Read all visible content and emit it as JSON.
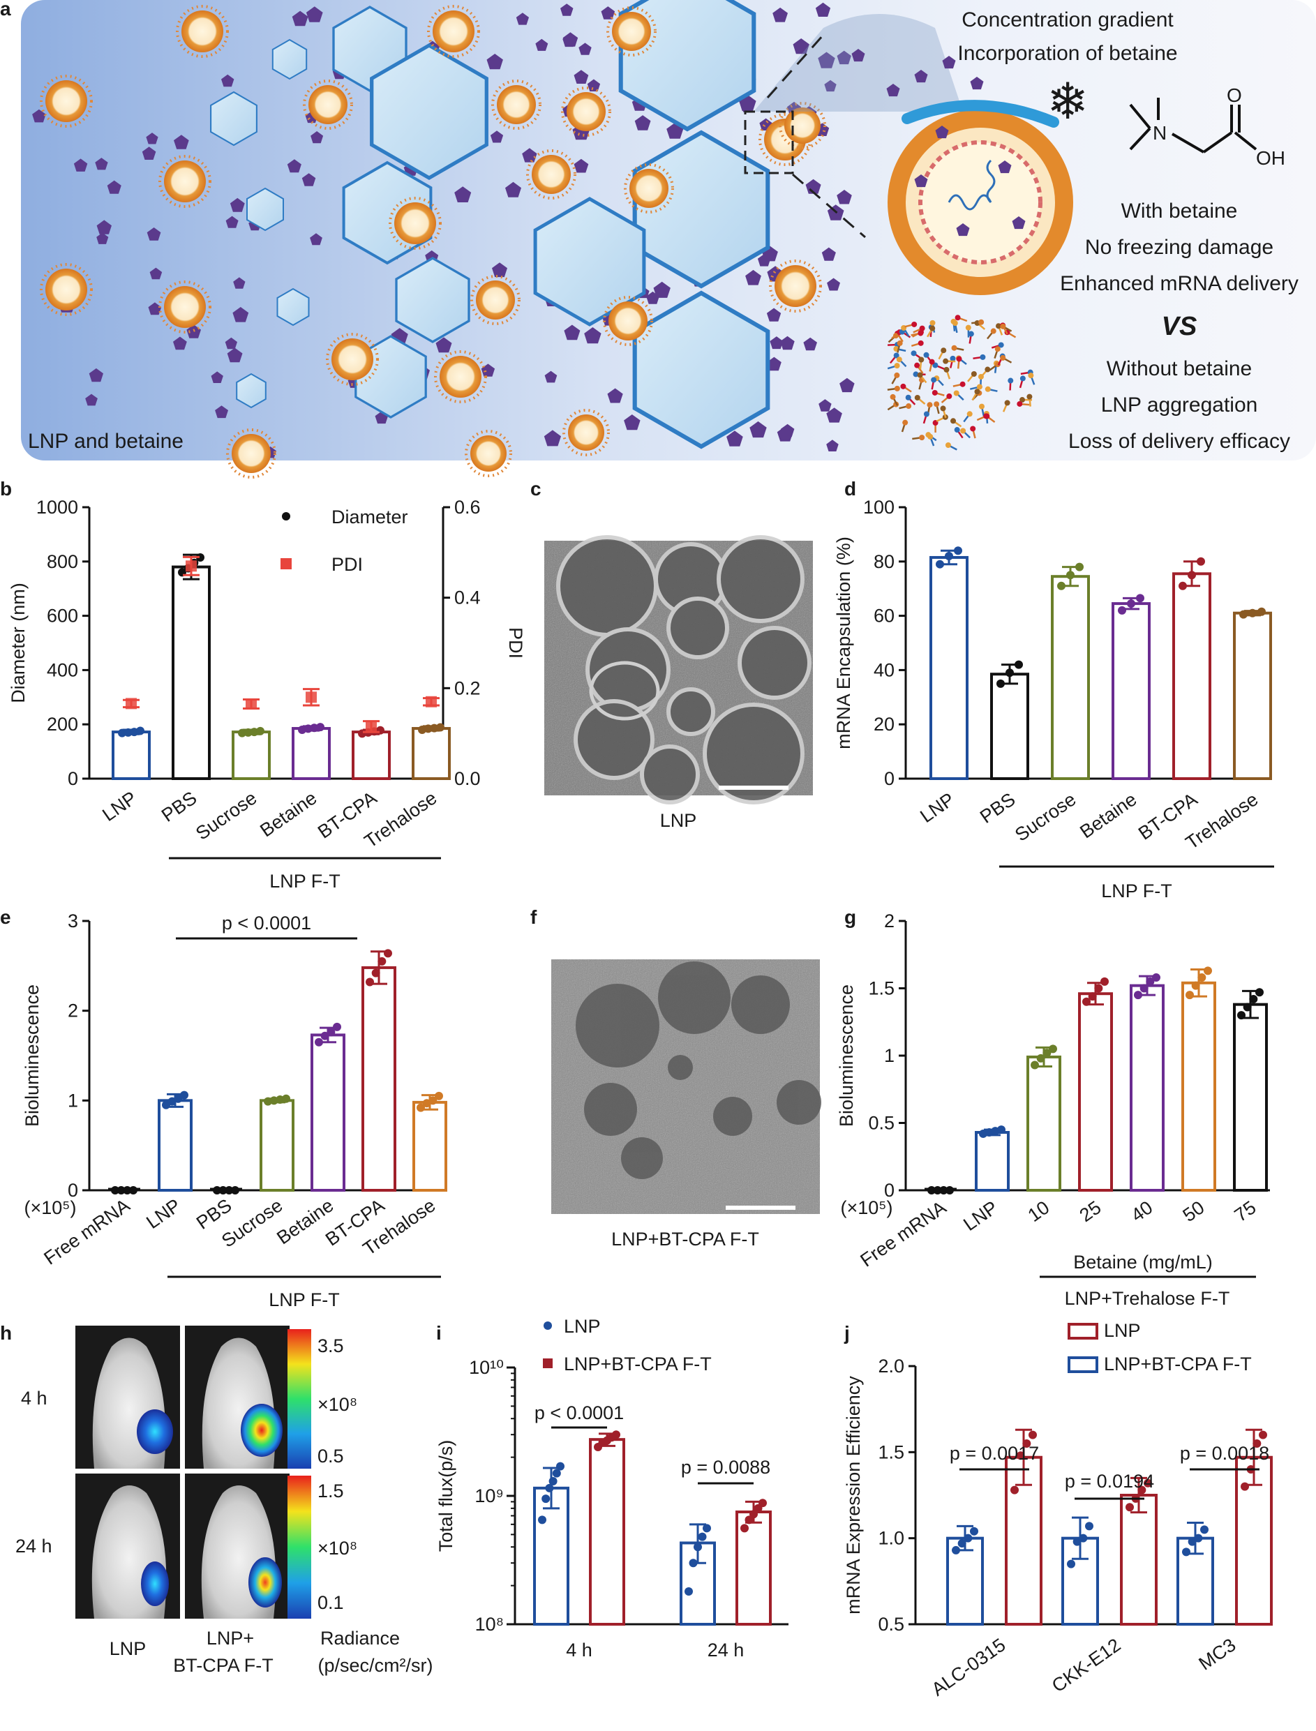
{
  "figure": {
    "panel_labels": [
      "a",
      "b",
      "c",
      "d",
      "e",
      "f",
      "g",
      "h",
      "i",
      "j"
    ],
    "panel_a": {
      "left_label": "LNP and betaine",
      "right_title_1": "Concentration gradient",
      "right_title_2": "Incorporation of betaine",
      "with_label": "With betaine",
      "with_effect_1": "No freezing damage",
      "with_effect_2": "Enhanced mRNA delivery",
      "vs_label": "VS",
      "without_label": "Without betaine",
      "without_effect_1": "LNP aggregation",
      "without_effect_2": "Loss of delivery efficacy",
      "chem_n": "N",
      "chem_o": "O",
      "chem_oh": "OH",
      "colors": {
        "with": "#1f8a3a",
        "without": "#c8102e",
        "ice": "#3a7bc8",
        "betaine": "#5b3a8c"
      }
    },
    "panel_c": {
      "caption": "LNP"
    },
    "panel_f": {
      "caption": "LNP+BT-CPA F-T"
    },
    "panel_h": {
      "row_labels": [
        "4 h",
        "24 h"
      ],
      "col_labels": [
        "LNP",
        "LNP+",
        "BT-CPA F-T"
      ],
      "scale_4h": {
        "max": "3.5",
        "min": "0.5",
        "unit": "×10⁸"
      },
      "scale_24h": {
        "max": "1.5",
        "min": "0.1",
        "unit": "×10⁸"
      },
      "radiance_label": "Radiance",
      "radiance_unit": "(p/sec/cm²/sr)"
    }
  },
  "chart_data": [
    {
      "id": "b",
      "type": "bar",
      "categories": [
        "LNP",
        "PBS",
        "Sucrose",
        "Betaine",
        "BT-CPA",
        "Trehalose"
      ],
      "series": [
        {
          "name": "Diameter",
          "axis": "left",
          "values": [
            172,
            780,
            172,
            185,
            172,
            185
          ],
          "errors": [
            8,
            45,
            8,
            8,
            8,
            8
          ],
          "points": [
            [
              168,
              170,
              172,
              176
            ],
            [
              760,
              775,
              795,
              815
            ],
            [
              168,
              170,
              172,
              175
            ],
            [
              180,
              184,
              187,
              190
            ],
            [
              166,
              170,
              174,
              178
            ],
            [
              180,
              184,
              186,
              189
            ]
          ]
        },
        {
          "name": "PDI",
          "axis": "right",
          "values": [
            0.166,
            0.47,
            0.165,
            0.18,
            0.115,
            0.17
          ],
          "errors": [
            0.008,
            0.02,
            0.01,
            0.018,
            0.012,
            0.008
          ]
        }
      ],
      "colors": [
        "#1f4e9c",
        "#111111",
        "#6b7f2a",
        "#6a2c91",
        "#a0202a",
        "#8a5a23"
      ],
      "pdi_color": "#e8453c",
      "ylabel": "Diameter (nm)",
      "y2label": "PDI",
      "ylim": [
        0,
        1000
      ],
      "yticks": [
        0,
        200,
        400,
        600,
        800,
        1000
      ],
      "y2lim": [
        0,
        0.6
      ],
      "y2ticks": [
        "0.0",
        "0.2",
        "0.4",
        "0.6"
      ],
      "legend": [
        "Diameter",
        "PDI"
      ],
      "group_label": "LNP F-T"
    },
    {
      "id": "d",
      "type": "bar",
      "categories": [
        "LNP",
        "PBS",
        "Sucrose",
        "Betaine",
        "BT-CPA",
        "Trehalose"
      ],
      "values": [
        81.5,
        38.5,
        74.5,
        64.5,
        75.5,
        61
      ],
      "errors": [
        2.5,
        3.5,
        3.5,
        2,
        4.5,
        0.8
      ],
      "points": [
        [
          79,
          82,
          84
        ],
        [
          35,
          39,
          42
        ],
        [
          71,
          75,
          78
        ],
        [
          62,
          64.5,
          66.5
        ],
        [
          71,
          75,
          80
        ],
        [
          60.5,
          61,
          61.5
        ]
      ],
      "colors": [
        "#1f4e9c",
        "#111111",
        "#6b7f2a",
        "#6a2c91",
        "#a0202a",
        "#8a5a23"
      ],
      "ylabel": "mRNA Encapsulation (%)",
      "ylim": [
        0,
        100
      ],
      "yticks": [
        0,
        20,
        40,
        60,
        80,
        100
      ],
      "group_label": "LNP F-T"
    },
    {
      "id": "e",
      "type": "bar",
      "categories": [
        "Free mRNA",
        "LNP",
        "PBS",
        "Sucrose",
        "Betaine",
        "BT-CPA",
        "Trehalose"
      ],
      "values": [
        0,
        1.0,
        0,
        1.0,
        1.73,
        2.48,
        0.98
      ],
      "errors": [
        0.01,
        0.07,
        0.01,
        0.02,
        0.08,
        0.18,
        0.08
      ],
      "points": [
        [
          0,
          0,
          0,
          0
        ],
        [
          0.95,
          0.99,
          1.02,
          1.06
        ],
        [
          0,
          0,
          0,
          0
        ],
        [
          0.99,
          1.0,
          1.01,
          1.02
        ],
        [
          1.65,
          1.72,
          1.76,
          1.82
        ],
        [
          2.32,
          2.42,
          2.55,
          2.64
        ],
        [
          0.92,
          0.97,
          1.0,
          1.05
        ]
      ],
      "colors": [
        "#111111",
        "#1f4e9c",
        "#111111",
        "#6b7f2a",
        "#6a2c91",
        "#a0202a",
        "#d07a26"
      ],
      "ylabel": "Bioluminescence",
      "yscale_note": "(×10⁵)",
      "ylim": [
        0,
        3
      ],
      "yticks": [
        0,
        1,
        2,
        3
      ],
      "annotation": "p < 0.0001",
      "group_label": "LNP F-T"
    },
    {
      "id": "g",
      "type": "bar",
      "categories": [
        "Free mRNA",
        "LNP",
        "10",
        "25",
        "40",
        "50",
        "75"
      ],
      "values": [
        0,
        0.43,
        0.99,
        1.46,
        1.52,
        1.54,
        1.38
      ],
      "errors": [
        0.01,
        0.02,
        0.07,
        0.08,
        0.07,
        0.1,
        0.1
      ],
      "points": [
        [
          0,
          0,
          0,
          0
        ],
        [
          0.42,
          0.43,
          0.44,
          0.45
        ],
        [
          0.93,
          0.98,
          1.02,
          1.05
        ],
        [
          1.4,
          1.44,
          1.5,
          1.55
        ],
        [
          1.45,
          1.5,
          1.55,
          1.58
        ],
        [
          1.45,
          1.52,
          1.58,
          1.63
        ],
        [
          1.3,
          1.36,
          1.42,
          1.47
        ]
      ],
      "colors": [
        "#111111",
        "#1f4e9c",
        "#6b7f2a",
        "#a0202a",
        "#6a2c91",
        "#d07a26",
        "#111111"
      ],
      "ylabel": "Bioluminescence",
      "yscale_note": "(×10⁵)",
      "ylim": [
        0,
        2
      ],
      "yticks": [
        "0",
        "0.5",
        "1",
        "1.5",
        "2"
      ],
      "sublabel": "Betaine (mg/mL)",
      "group_label": "LNP+Trehalose F-T"
    },
    {
      "id": "i",
      "type": "bar",
      "yscale": "log",
      "categories": [
        "4 h",
        "24 h"
      ],
      "series": [
        {
          "name": "LNP",
          "values": [
            1150000000,
            430000000
          ],
          "errors": [
            [
              800000000,
              1650000000
            ],
            [
              300000000,
              600000000
            ]
          ],
          "points": [
            [
              650000000,
              950000000,
              1150000000,
              1300000000,
              1500000000,
              1700000000
            ],
            [
              180000000,
              300000000,
              400000000,
              480000000,
              560000000
            ]
          ]
        },
        {
          "name": "LNP+BT-CPA F-T",
          "values": [
            2750000000,
            750000000
          ],
          "errors": [
            [
              2450000000,
              3050000000
            ],
            [
              620000000,
              900000000
            ]
          ],
          "points": [
            [
              2400000000,
              2600000000,
              2700000000,
              2850000000,
              3000000000
            ],
            [
              560000000,
              650000000,
              720000000,
              800000000,
              880000000
            ]
          ]
        }
      ],
      "colors": [
        "#1f4e9c",
        "#a0202a"
      ],
      "ylabel": "Total flux(p/s)",
      "ylim": [
        100000000,
        10000000000
      ],
      "yticks": [
        "10⁸",
        "10⁹",
        "10¹⁰"
      ],
      "annotations": [
        "p < 0.0001",
        "p = 0.0088"
      ],
      "legend": [
        "LNP",
        "LNP+BT-CPA F-T"
      ]
    },
    {
      "id": "j",
      "type": "bar",
      "categories": [
        "ALC-0315",
        "CKK-E12",
        "MC3"
      ],
      "series": [
        {
          "name": "LNP+BT-CPA F-T",
          "values": [
            1.0,
            1.0,
            1.0
          ],
          "errors": [
            0.07,
            0.12,
            0.09
          ],
          "points": [
            [
              0.93,
              0.97,
              1.0,
              1.04
            ],
            [
              0.85,
              0.98,
              1.0,
              1.07
            ],
            [
              0.92,
              0.98,
              1.0,
              1.05
            ]
          ]
        },
        {
          "name": "LNP",
          "values": [
            1.47,
            1.25,
            1.47
          ],
          "errors": [
            0.16,
            0.1,
            0.16
          ],
          "points": [
            [
              1.28,
              1.48,
              1.55,
              1.6
            ],
            [
              1.18,
              1.23,
              1.28,
              1.32
            ],
            [
              1.3,
              1.4,
              1.55,
              1.6
            ]
          ]
        }
      ],
      "colors": [
        "#1f4e9c",
        "#a0202a"
      ],
      "ylabel": "mRNA Expression Efficiency",
      "ylim": [
        0.5,
        2.0
      ],
      "yticks": [
        "0.5",
        "1.0",
        "1.5",
        "2.0"
      ],
      "annotations": [
        "p = 0.0017",
        "p = 0.0194",
        "p = 0.0018"
      ],
      "legend": [
        "LNP",
        "LNP+BT-CPA F-T"
      ]
    }
  ]
}
